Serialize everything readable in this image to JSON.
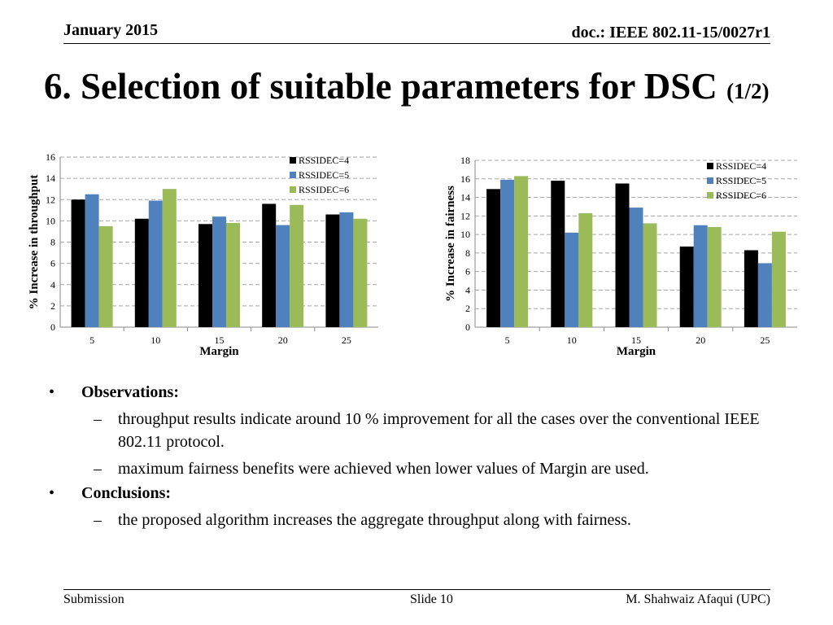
{
  "header": {
    "date": "January 2015",
    "doc": "doc.: IEEE 802.11-15/0027r1"
  },
  "title": {
    "main": "6. Selection of suitable parameters for DSC ",
    "part": "(1/2)"
  },
  "colors": {
    "series": [
      "#000000",
      "#4f81bd",
      "#9bbb59"
    ],
    "grid": "#a6a6a6"
  },
  "chart_data": [
    {
      "type": "bar",
      "categories": [
        "5",
        "10",
        "15",
        "20",
        "25"
      ],
      "series": [
        {
          "name": "RSSIDEC=4",
          "values": [
            12.0,
            10.2,
            9.7,
            11.6,
            10.6
          ]
        },
        {
          "name": "RSSIDEC=5",
          "values": [
            12.5,
            11.9,
            10.4,
            9.6,
            10.8
          ]
        },
        {
          "name": "RSSIDEC=6",
          "values": [
            9.5,
            13.0,
            9.8,
            11.5,
            10.2
          ]
        }
      ],
      "xlabel": "Margin",
      "ylabel": "% Increase in throughput",
      "ylim": [
        0,
        16
      ],
      "yticks": [
        "0",
        "2",
        "4",
        "6",
        "8",
        "10",
        "12",
        "14",
        "16"
      ],
      "grid": true,
      "legend": "top-right"
    },
    {
      "type": "bar",
      "categories": [
        "5",
        "10",
        "15",
        "20",
        "25"
      ],
      "series": [
        {
          "name": "RSSIDEC=4",
          "values": [
            14.9,
            15.8,
            15.5,
            8.7,
            8.3
          ]
        },
        {
          "name": "RSSIDEC=5",
          "values": [
            15.9,
            10.2,
            12.9,
            11.0,
            6.9
          ]
        },
        {
          "name": "RSSIDEC=6",
          "values": [
            16.3,
            12.3,
            11.2,
            10.8,
            10.3
          ]
        }
      ],
      "xlabel": "Margin",
      "ylabel": "% Increase in fairness",
      "ylim": [
        0,
        18
      ],
      "yticks": [
        "0",
        "2",
        "4",
        "6",
        "8",
        "10",
        "12",
        "14",
        "16",
        "18"
      ],
      "grid": true,
      "legend": "top-right"
    }
  ],
  "observations": {
    "heading": "Observations:",
    "items": [
      "throughput results indicate around 10 % improvement for all the cases over the conventional IEEE 802.11 protocol.",
      "maximum fairness benefits were achieved when lower values of Margin are used."
    ]
  },
  "conclusions": {
    "heading": "Conclusions:",
    "items": [
      "the proposed algorithm increases the aggregate throughput along with fairness."
    ]
  },
  "bullet_glyph": "•",
  "dash_glyph": "–",
  "footer": {
    "left": "Submission",
    "center": "Slide 10",
    "right": "M. Shahwaiz Afaqui (UPC)"
  }
}
